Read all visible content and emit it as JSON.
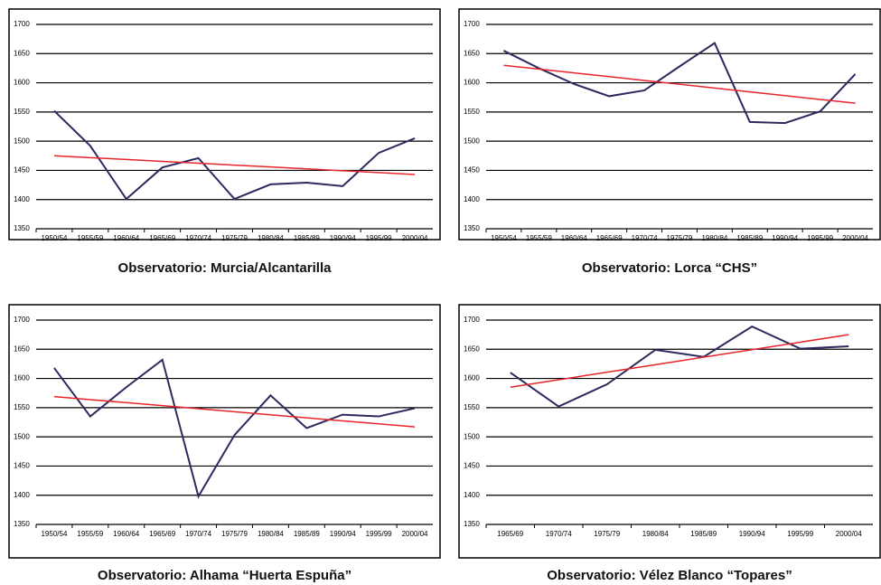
{
  "chart_data": [
    {
      "type": "line",
      "caption": "Observatorio: Murcia/Alcantarilla",
      "categories": [
        "1950/54",
        "1955/59",
        "1960/64",
        "1965/69",
        "1970/74",
        "1975/79",
        "1980/84",
        "1985/89",
        "1990/94",
        "1995/99",
        "2000/04"
      ],
      "series": [
        {
          "color": "#2b2a5e",
          "values": [
            1552,
            1492,
            1401,
            1455,
            1471,
            1401,
            1426,
            1429,
            1423,
            1480,
            1505
          ]
        },
        {
          "color": "#e8242b",
          "values": [
            1475,
            1471.8,
            1468.6,
            1465.4,
            1462.2,
            1459,
            1455.8,
            1452.6,
            1449.4,
            1446.2,
            1443
          ]
        }
      ],
      "ylim": [
        1350,
        1700
      ],
      "yticks": [
        1350,
        1400,
        1450,
        1500,
        1550,
        1600,
        1650,
        1700
      ],
      "grid": true
    },
    {
      "type": "line",
      "caption": "Observatorio: Lorca “CHS”",
      "categories": [
        "1950/54",
        "1955/59",
        "1960/64",
        "1965/69",
        "1970/74",
        "1975/79",
        "1980/84",
        "1985/89",
        "1990/94",
        "1995/99",
        "2000/04"
      ],
      "series": [
        {
          "color": "#2b2a5e",
          "values": [
            1655,
            1625,
            1598,
            1577,
            1587,
            1628,
            1668,
            1533,
            1531,
            1551,
            1615
          ]
        },
        {
          "color": "#e8242b",
          "values": [
            1630,
            1623.5,
            1617,
            1610.5,
            1604,
            1597.5,
            1591,
            1584.5,
            1578,
            1571.5,
            1565
          ]
        }
      ],
      "ylim": [
        1350,
        1700
      ],
      "yticks": [
        1350,
        1400,
        1450,
        1500,
        1550,
        1600,
        1650,
        1700
      ],
      "grid": true
    },
    {
      "type": "line",
      "caption": "Observatorio: Alhama “Huerta Espuña”",
      "categories": [
        "1950/54",
        "1955/59",
        "1960/64",
        "1965/69",
        "1970/74",
        "1975/79",
        "1980/84",
        "1985/89",
        "1990/94",
        "1995/99",
        "2000/04"
      ],
      "series": [
        {
          "color": "#2b2a5e",
          "values": [
            1618,
            1535,
            1585,
            1632,
            1398,
            1503,
            1571,
            1515,
            1538,
            1535,
            1549
          ]
        },
        {
          "color": "#e8242b",
          "values": [
            1569,
            1563.8,
            1558.6,
            1553.4,
            1548.2,
            1543,
            1537.8,
            1532.6,
            1527.4,
            1522.2,
            1517
          ]
        }
      ],
      "ylim": [
        1350,
        1700
      ],
      "yticks": [
        1350,
        1400,
        1450,
        1500,
        1550,
        1600,
        1650,
        1700
      ],
      "grid": true
    },
    {
      "type": "line",
      "caption": "Observatorio: Vélez Blanco “Topares”",
      "categories": [
        "1965/69",
        "1970/74",
        "1975/79",
        "1980/84",
        "1985/89",
        "1990/94",
        "1995/99",
        "2000/04"
      ],
      "series": [
        {
          "color": "#2b2a5e",
          "values": [
            1610,
            1552,
            1590,
            1649,
            1637,
            1689,
            1651,
            1655
          ]
        },
        {
          "color": "#e8242b",
          "values": [
            1585,
            1597.86,
            1610.71,
            1623.57,
            1636.43,
            1649.29,
            1662.14,
            1675
          ]
        }
      ],
      "ylim": [
        1350,
        1700
      ],
      "yticks": [
        1350,
        1400,
        1450,
        1500,
        1550,
        1600,
        1650,
        1700
      ],
      "grid": true
    }
  ]
}
